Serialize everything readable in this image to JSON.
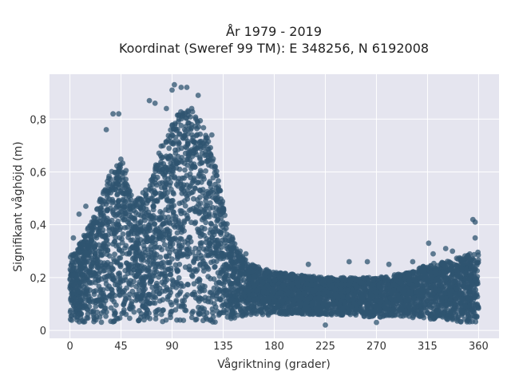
{
  "chart_data": {
    "type": "scatter",
    "title_line1": "År 1979 - 2019",
    "title_line2": "Koordinat (Sweref 99 TM): E 348256, N 6192008",
    "xlabel": "Vågriktning (grader)",
    "ylabel": "Signifikant våghöjd (m)",
    "xlim": [
      -18,
      378
    ],
    "ylim": [
      -0.03,
      0.97
    ],
    "x_ticks": [
      0,
      45,
      90,
      135,
      180,
      225,
      270,
      315,
      360
    ],
    "x_tick_labels": [
      "0",
      "45",
      "90",
      "135",
      "180",
      "225",
      "270",
      "315",
      "360"
    ],
    "y_ticks": [
      0,
      0.2,
      0.4,
      0.6,
      0.8
    ],
    "y_tick_labels": [
      "0",
      "0,2",
      "0,4",
      "0,6",
      "0,8"
    ],
    "grid": true,
    "marker_color": "#2f5470",
    "background_color": "#e5e5ef",
    "envelope": {
      "x": [
        0,
        10,
        20,
        30,
        40,
        45,
        50,
        55,
        60,
        70,
        80,
        90,
        95,
        100,
        110,
        115,
        120,
        130,
        140,
        150,
        160,
        180,
        225,
        270,
        300,
        315,
        330,
        345,
        360
      ],
      "y_upper": [
        0.28,
        0.34,
        0.42,
        0.55,
        0.64,
        0.66,
        0.6,
        0.5,
        0.5,
        0.55,
        0.7,
        0.78,
        0.82,
        0.84,
        0.84,
        0.82,
        0.75,
        0.6,
        0.38,
        0.29,
        0.25,
        0.22,
        0.2,
        0.2,
        0.22,
        0.25,
        0.26,
        0.28,
        0.3
      ],
      "y_lower": [
        0.03,
        0.03,
        0.03,
        0.03,
        0.03,
        0.03,
        0.03,
        0.03,
        0.03,
        0.03,
        0.03,
        0.03,
        0.03,
        0.03,
        0.03,
        0.03,
        0.03,
        0.03,
        0.04,
        0.05,
        0.05,
        0.06,
        0.06,
        0.05,
        0.05,
        0.04,
        0.04,
        0.03,
        0.03
      ]
    },
    "notable_points": [
      {
        "x": 92,
        "y": 0.93
      },
      {
        "x": 98,
        "y": 0.92
      },
      {
        "x": 103,
        "y": 0.92
      },
      {
        "x": 90,
        "y": 0.91
      },
      {
        "x": 113,
        "y": 0.89
      },
      {
        "x": 70,
        "y": 0.87
      },
      {
        "x": 75,
        "y": 0.86
      },
      {
        "x": 38,
        "y": 0.82
      },
      {
        "x": 43,
        "y": 0.82
      },
      {
        "x": 85,
        "y": 0.84
      },
      {
        "x": 125,
        "y": 0.74
      },
      {
        "x": 32,
        "y": 0.76
      },
      {
        "x": 355,
        "y": 0.42
      },
      {
        "x": 357,
        "y": 0.41
      },
      {
        "x": 357,
        "y": 0.35
      },
      {
        "x": 316,
        "y": 0.33
      },
      {
        "x": 331,
        "y": 0.31
      },
      {
        "x": 337,
        "y": 0.3
      },
      {
        "x": 320,
        "y": 0.29
      },
      {
        "x": 3,
        "y": 0.35
      },
      {
        "x": 8,
        "y": 0.44
      },
      {
        "x": 14,
        "y": 0.47
      },
      {
        "x": 150,
        "y": 0.3
      },
      {
        "x": 155,
        "y": 0.29
      },
      {
        "x": 210,
        "y": 0.25
      },
      {
        "x": 246,
        "y": 0.26
      },
      {
        "x": 262,
        "y": 0.26
      },
      {
        "x": 281,
        "y": 0.25
      },
      {
        "x": 302,
        "y": 0.26
      },
      {
        "x": 270,
        "y": 0.03
      },
      {
        "x": 225,
        "y": 0.02
      }
    ]
  }
}
